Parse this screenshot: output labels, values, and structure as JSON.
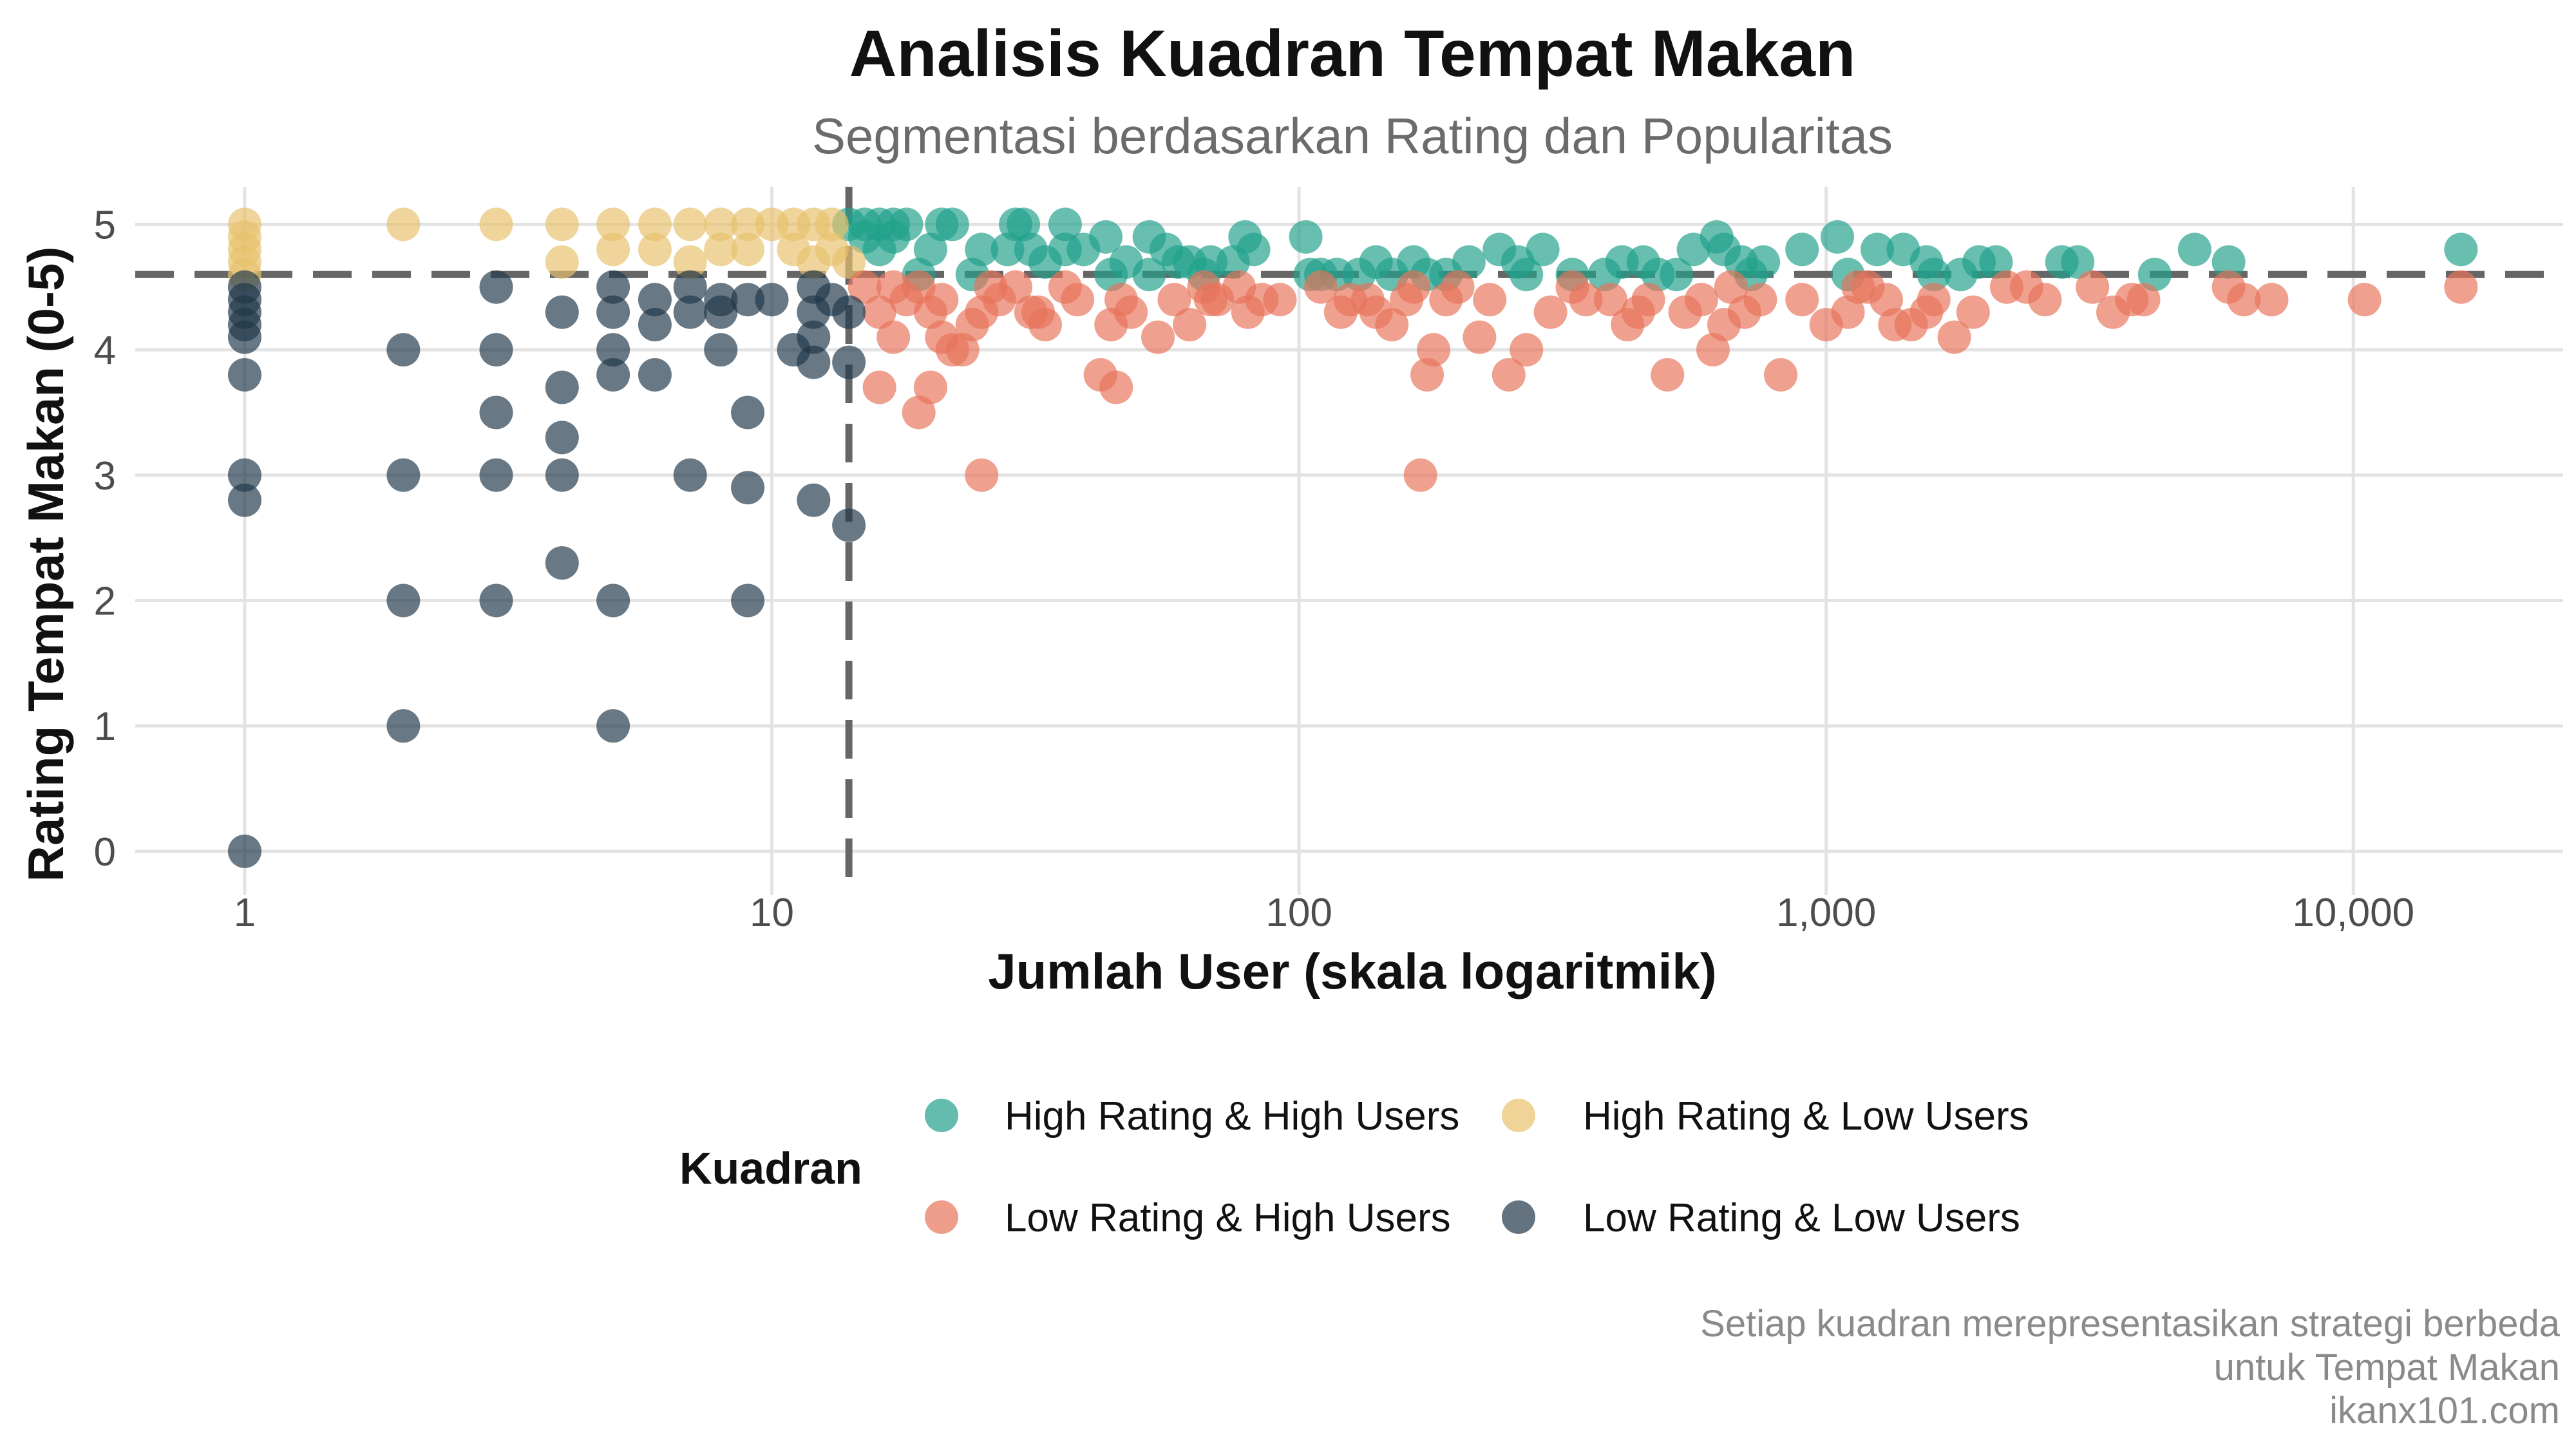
{
  "chart_data": {
    "type": "scatter",
    "title": "Analisis Kuadran Tempat Makan",
    "subtitle": "Segmentasi berdasarkan Rating dan Popularitas",
    "xlabel": "Jumlah User (skala logaritmik)",
    "ylabel": "Rating Tempat Makan (0-5)",
    "x_scale": "log10",
    "xlim": [
      0.62,
      25000
    ],
    "ylim": [
      -0.35,
      5.3
    ],
    "x_ticks": [
      1,
      10,
      100,
      1000,
      10000
    ],
    "x_tick_labels": [
      "1",
      "10",
      "100",
      "1,000",
      "10,000"
    ],
    "y_ticks": [
      0,
      1,
      2,
      3,
      4,
      5
    ],
    "y_tick_labels": [
      "0",
      "1",
      "2",
      "3",
      "4",
      "5"
    ],
    "grid": true,
    "reference_lines": {
      "x": 14,
      "y": 4.6
    },
    "legend": {
      "title": "Kuadran",
      "position": "bottom",
      "entries": [
        {
          "label": "High Rating & High Users",
          "color": "#21A08B"
        },
        {
          "label": "High Rating & Low Users",
          "color": "#E8C16B"
        },
        {
          "label": "Low Rating & High Users",
          "color": "#E8735A"
        },
        {
          "label": "Low Rating & Low Users",
          "color": "#21384A"
        }
      ]
    },
    "caption": [
      "Setiap kuadran merepresentasikan strategi berbeda",
      "untuk Tempat Makan",
      "ikanx101.com"
    ],
    "series": [
      {
        "name": "High Rating & High Users",
        "color": "#21A08B",
        "points": [
          [
            14,
            5.0
          ],
          [
            15,
            5.0
          ],
          [
            16,
            5.0
          ],
          [
            17,
            5.0
          ],
          [
            18,
            5.0
          ],
          [
            21,
            5.0
          ],
          [
            22,
            5.0
          ],
          [
            29,
            5.0
          ],
          [
            30,
            5.0
          ],
          [
            36,
            5.0
          ],
          [
            15,
            4.9
          ],
          [
            16,
            4.8
          ],
          [
            17,
            4.9
          ],
          [
            20,
            4.8
          ],
          [
            25,
            4.8
          ],
          [
            28,
            4.8
          ],
          [
            31,
            4.8
          ],
          [
            33,
            4.7
          ],
          [
            36,
            4.8
          ],
          [
            39,
            4.8
          ],
          [
            43,
            4.9
          ],
          [
            47,
            4.7
          ],
          [
            52,
            4.9
          ],
          [
            56,
            4.8
          ],
          [
            59,
            4.7
          ],
          [
            62,
            4.7
          ],
          [
            68,
            4.7
          ],
          [
            75,
            4.7
          ],
          [
            79,
            4.9
          ],
          [
            82,
            4.8
          ],
          [
            103,
            4.9
          ],
          [
            110,
            4.6
          ],
          [
            130,
            4.6
          ],
          [
            140,
            4.7
          ],
          [
            150,
            4.6
          ],
          [
            165,
            4.7
          ],
          [
            175,
            4.6
          ],
          [
            190,
            4.6
          ],
          [
            210,
            4.7
          ],
          [
            240,
            4.8
          ],
          [
            260,
            4.7
          ],
          [
            290,
            4.8
          ],
          [
            330,
            4.6
          ],
          [
            380,
            4.6
          ],
          [
            410,
            4.7
          ],
          [
            450,
            4.7
          ],
          [
            480,
            4.6
          ],
          [
            520,
            4.6
          ],
          [
            560,
            4.8
          ],
          [
            620,
            4.9
          ],
          [
            640,
            4.8
          ],
          [
            690,
            4.7
          ],
          [
            720,
            4.6
          ],
          [
            760,
            4.7
          ],
          [
            900,
            4.8
          ],
          [
            1050,
            4.9
          ],
          [
            1100,
            4.6
          ],
          [
            1250,
            4.8
          ],
          [
            1400,
            4.8
          ],
          [
            1550,
            4.7
          ],
          [
            1600,
            4.6
          ],
          [
            1800,
            4.6
          ],
          [
            1950,
            4.7
          ],
          [
            2100,
            4.7
          ],
          [
            2800,
            4.7
          ],
          [
            3000,
            4.7
          ],
          [
            4200,
            4.6
          ],
          [
            5000,
            4.8
          ],
          [
            5800,
            4.7
          ],
          [
            16000,
            4.8
          ],
          [
            19,
            4.6
          ],
          [
            24,
            4.6
          ],
          [
            44,
            4.6
          ],
          [
            52,
            4.6
          ],
          [
            66,
            4.6
          ],
          [
            105,
            4.6
          ],
          [
            118,
            4.6
          ],
          [
            270,
            4.6
          ]
        ]
      },
      {
        "name": "High Rating & Low Users",
        "color": "#E8C16B",
        "points": [
          [
            1,
            5.0
          ],
          [
            1,
            4.9
          ],
          [
            1,
            4.8
          ],
          [
            1,
            4.7
          ],
          [
            1,
            4.6
          ],
          [
            2,
            5.0
          ],
          [
            3,
            5.0
          ],
          [
            4,
            5.0
          ],
          [
            4,
            4.7
          ],
          [
            5,
            5.0
          ],
          [
            5,
            4.8
          ],
          [
            6,
            5.0
          ],
          [
            6,
            4.8
          ],
          [
            7,
            5.0
          ],
          [
            7,
            4.7
          ],
          [
            8,
            5.0
          ],
          [
            8,
            4.8
          ],
          [
            9,
            5.0
          ],
          [
            9,
            4.8
          ],
          [
            10,
            5.0
          ],
          [
            11,
            5.0
          ],
          [
            11,
            4.8
          ],
          [
            12,
            5.0
          ],
          [
            12,
            4.7
          ],
          [
            13,
            5.0
          ],
          [
            13,
            4.8
          ],
          [
            14,
            4.7
          ]
        ]
      },
      {
        "name": "Low Rating & High Users",
        "color": "#E8735A",
        "points": [
          [
            15,
            4.5
          ],
          [
            16,
            4.3
          ],
          [
            17,
            4.1
          ],
          [
            18,
            4.4
          ],
          [
            19,
            4.5
          ],
          [
            20,
            4.3
          ],
          [
            21,
            4.1
          ],
          [
            22,
            4.0
          ],
          [
            23,
            4.0
          ],
          [
            24,
            4.2
          ],
          [
            25,
            4.3
          ],
          [
            27,
            4.4
          ],
          [
            29,
            4.5
          ],
          [
            32,
            4.3
          ],
          [
            36,
            4.5
          ],
          [
            38,
            4.4
          ],
          [
            42,
            3.8
          ],
          [
            44,
            4.2
          ],
          [
            46,
            4.4
          ],
          [
            48,
            4.3
          ],
          [
            54,
            4.1
          ],
          [
            58,
            4.4
          ],
          [
            62,
            4.2
          ],
          [
            66,
            4.5
          ],
          [
            70,
            4.4
          ],
          [
            80,
            4.3
          ],
          [
            85,
            4.4
          ],
          [
            92,
            4.4
          ],
          [
            110,
            4.5
          ],
          [
            120,
            4.3
          ],
          [
            135,
            4.4
          ],
          [
            150,
            4.2
          ],
          [
            160,
            4.4
          ],
          [
            175,
            3.8
          ],
          [
            180,
            4.0
          ],
          [
            190,
            4.4
          ],
          [
            200,
            4.5
          ],
          [
            220,
            4.1
          ],
          [
            250,
            3.8
          ],
          [
            270,
            4.0
          ],
          [
            300,
            4.3
          ],
          [
            350,
            4.4
          ],
          [
            390,
            4.4
          ],
          [
            420,
            4.2
          ],
          [
            460,
            4.4
          ],
          [
            500,
            3.8
          ],
          [
            540,
            4.3
          ],
          [
            580,
            4.4
          ],
          [
            610,
            4.0
          ],
          [
            640,
            4.2
          ],
          [
            700,
            4.3
          ],
          [
            750,
            4.4
          ],
          [
            820,
            3.8
          ],
          [
            1000,
            4.2
          ],
          [
            1100,
            4.3
          ],
          [
            1150,
            4.5
          ],
          [
            1200,
            4.5
          ],
          [
            1350,
            4.2
          ],
          [
            1450,
            4.2
          ],
          [
            1600,
            4.4
          ],
          [
            1750,
            4.1
          ],
          [
            1900,
            4.3
          ],
          [
            2200,
            4.5
          ],
          [
            2600,
            4.4
          ],
          [
            3200,
            4.5
          ],
          [
            3500,
            4.3
          ],
          [
            4000,
            4.4
          ],
          [
            5800,
            4.5
          ],
          [
            6200,
            4.4
          ],
          [
            7000,
            4.4
          ],
          [
            10500,
            4.4
          ],
          [
            16000,
            4.5
          ],
          [
            16,
            3.7
          ],
          [
            19,
            3.5
          ],
          [
            20,
            3.7
          ],
          [
            25,
            3.0
          ],
          [
            45,
            3.7
          ],
          [
            170,
            3.0
          ],
          [
            17,
            4.5
          ],
          [
            21,
            4.4
          ],
          [
            26,
            4.5
          ],
          [
            33,
            4.2
          ],
          [
            31,
            4.3
          ],
          [
            68,
            4.4
          ],
          [
            77,
            4.5
          ],
          [
            125,
            4.4
          ],
          [
            140,
            4.3
          ],
          [
            165,
            4.5
          ],
          [
            230,
            4.4
          ],
          [
            330,
            4.5
          ],
          [
            440,
            4.3
          ],
          [
            660,
            4.5
          ],
          [
            900,
            4.4
          ],
          [
            1300,
            4.4
          ],
          [
            1550,
            4.3
          ],
          [
            2400,
            4.5
          ],
          [
            3800,
            4.4
          ]
        ]
      },
      {
        "name": "Low Rating & Low Users",
        "color": "#21384A",
        "points": [
          [
            1,
            4.5
          ],
          [
            1,
            4.4
          ],
          [
            1,
            4.3
          ],
          [
            1,
            4.2
          ],
          [
            1,
            4.1
          ],
          [
            1,
            3.8
          ],
          [
            1,
            3.0
          ],
          [
            1,
            2.8
          ],
          [
            1,
            0.0
          ],
          [
            2,
            4.0
          ],
          [
            2,
            3.0
          ],
          [
            2,
            2.0
          ],
          [
            2,
            1.0
          ],
          [
            3,
            4.5
          ],
          [
            3,
            4.0
          ],
          [
            3,
            3.5
          ],
          [
            3,
            3.0
          ],
          [
            3,
            2.0
          ],
          [
            4,
            4.3
          ],
          [
            4,
            3.7
          ],
          [
            4,
            3.3
          ],
          [
            4,
            3.0
          ],
          [
            4,
            2.3
          ],
          [
            5,
            4.5
          ],
          [
            5,
            4.3
          ],
          [
            5,
            4.0
          ],
          [
            5,
            3.8
          ],
          [
            5,
            2.0
          ],
          [
            5,
            1.0
          ],
          [
            6,
            4.4
          ],
          [
            6,
            4.2
          ],
          [
            6,
            3.8
          ],
          [
            7,
            4.5
          ],
          [
            7,
            4.3
          ],
          [
            7,
            3.0
          ],
          [
            8,
            4.4
          ],
          [
            8,
            4.3
          ],
          [
            8,
            4.0
          ],
          [
            9,
            4.4
          ],
          [
            9,
            3.5
          ],
          [
            9,
            2.9
          ],
          [
            9,
            2.0
          ],
          [
            10,
            4.4
          ],
          [
            11,
            4.0
          ],
          [
            12,
            4.5
          ],
          [
            12,
            4.3
          ],
          [
            12,
            4.1
          ],
          [
            12,
            3.9
          ],
          [
            12,
            2.8
          ],
          [
            13,
            4.4
          ],
          [
            14,
            4.3
          ],
          [
            14,
            3.9
          ],
          [
            14,
            2.6
          ]
        ]
      }
    ]
  }
}
